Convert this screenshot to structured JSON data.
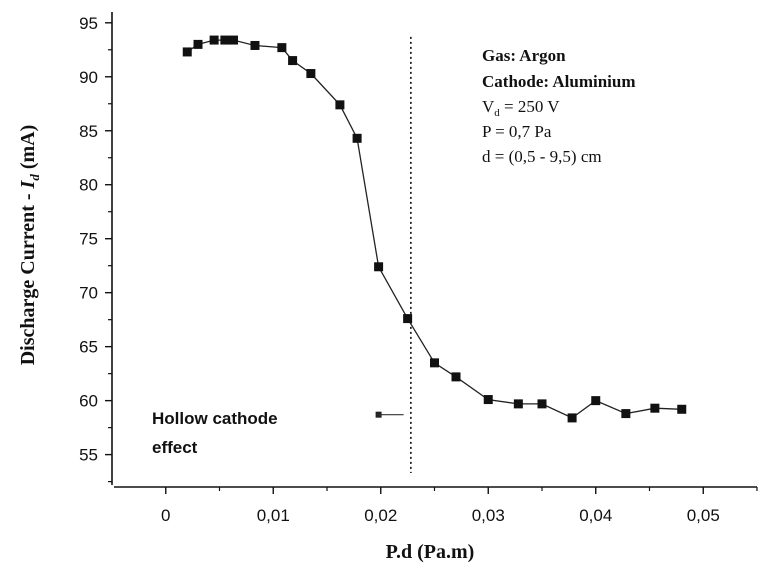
{
  "chart_data": {
    "type": "scatter",
    "title": "",
    "xlabel": "P.d (Pa.m)",
    "ylabel_main": "Discharge Current - ",
    "ylabel_symbol": "I",
    "ylabel_sub": "d",
    "ylabel_unit": " (mA)",
    "xlim": [
      -0.005,
      0.055
    ],
    "ylim": [
      52,
      96
    ],
    "x_ticks": [
      0,
      0.01,
      0.02,
      0.03,
      0.04,
      0.05
    ],
    "x_tick_labels": [
      "0",
      "0,01",
      "0,02",
      "0,03",
      "0,04",
      "0,05"
    ],
    "y_ticks": [
      55,
      60,
      65,
      70,
      75,
      80,
      85,
      90,
      95
    ],
    "y_tick_labels": [
      "55",
      "60",
      "65",
      "70",
      "75",
      "80",
      "85",
      "90",
      "95"
    ],
    "grid": false,
    "marker": "square",
    "line": true,
    "series": [
      {
        "x": [
          0.002,
          0.003,
          0.0045,
          0.0055,
          0.0063,
          0.0083,
          0.0108,
          0.0118,
          0.0135,
          0.0162,
          0.0178,
          0.0198,
          0.0225,
          0.025,
          0.027,
          0.03,
          0.0328,
          0.035,
          0.0378,
          0.04,
          0.0428,
          0.0455,
          0.048
        ],
        "y": [
          92.3,
          93.0,
          93.4,
          93.4,
          93.4,
          92.9,
          92.7,
          91.5,
          90.3,
          87.4,
          84.3,
          72.4,
          67.6,
          63.5,
          62.2,
          60.1,
          59.7,
          59.7,
          58.4,
          60.0,
          58.8,
          59.3,
          59.2
        ]
      }
    ],
    "vline_x": 0.0228,
    "annotation": {
      "line1": "Hollow cathode",
      "line2": "effect",
      "arrow_from_x": 0.0198,
      "arrow_to_x": 0.0225,
      "arrow_y": 58.7
    },
    "info_box": {
      "gas": "Gas: Argon",
      "cathode": "Cathode: Aluminium",
      "voltage_prefix": "V",
      "voltage_sub": "d",
      "voltage_value": " = 250 V",
      "pressure": "P = 0,7 Pa",
      "distance": "d = (0,5 - 9,5) cm"
    }
  }
}
